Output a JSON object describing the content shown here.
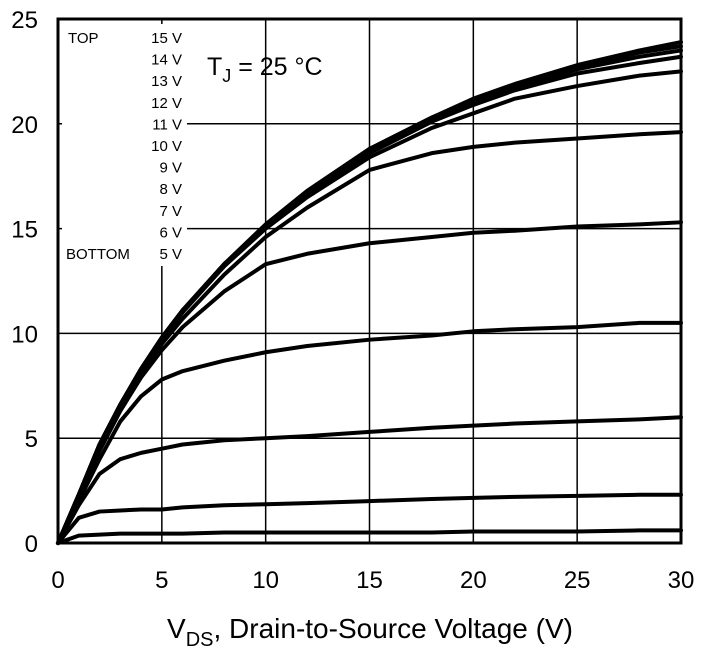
{
  "chart_data": {
    "type": "line",
    "annotation": {
      "main": "T",
      "sub": "J",
      "rest": " = 25 °C"
    },
    "x_label": {
      "main": "V",
      "sub": "DS",
      "rest": ", Drain-to-Source Voltage (V)"
    },
    "legend_top": "TOP",
    "legend_bottom": "BOTTOM",
    "x": [
      0,
      1,
      2,
      3,
      4,
      5,
      6,
      8,
      10,
      12,
      15,
      18,
      20,
      22,
      25,
      28,
      30
    ],
    "series": [
      {
        "name": "15 V",
        "color": "#000000",
        "values": [
          0,
          2.3,
          4.7,
          6.6,
          8.3,
          9.8,
          11.1,
          13.3,
          15.2,
          16.8,
          18.8,
          20.3,
          21.2,
          21.9,
          22.8,
          23.5,
          23.9
        ]
      },
      {
        "name": "14 V",
        "color": "#000000",
        "values": [
          0,
          2.3,
          4.7,
          6.6,
          8.3,
          9.8,
          11.1,
          13.3,
          15.2,
          16.8,
          18.8,
          20.3,
          21.1,
          21.8,
          22.7,
          23.4,
          23.7
        ]
      },
      {
        "name": "13 V",
        "color": "#000000",
        "values": [
          0,
          2.3,
          4.7,
          6.6,
          8.3,
          9.8,
          11.1,
          13.3,
          15.1,
          16.7,
          18.7,
          20.2,
          21,
          21.7,
          22.6,
          23.2,
          23.5
        ]
      },
      {
        "name": "12 V",
        "color": "#000000",
        "values": [
          0,
          2.3,
          4.7,
          6.6,
          8.3,
          9.8,
          11.1,
          13.2,
          15.1,
          16.6,
          18.6,
          20.1,
          20.9,
          21.6,
          22.4,
          22.9,
          23.2
        ]
      },
      {
        "name": "11 V",
        "color": "#000000",
        "values": [
          0,
          2.3,
          4.7,
          6.6,
          8.3,
          9.7,
          11,
          13.2,
          15,
          16.5,
          18.4,
          19.8,
          20.5,
          21.2,
          21.8,
          22.3,
          22.5
        ]
      },
      {
        "name": "10 V",
        "color": "#000000",
        "values": [
          0,
          2.3,
          4.6,
          6.5,
          8.1,
          9.5,
          10.7,
          12.8,
          14.6,
          16,
          17.8,
          18.6,
          18.9,
          19.1,
          19.3,
          19.5,
          19.6
        ]
      },
      {
        "name": "9 V",
        "color": "#000000",
        "values": [
          0,
          2.2,
          4.4,
          6.3,
          7.9,
          9.2,
          10.3,
          12,
          13.3,
          13.8,
          14.3,
          14.6,
          14.8,
          14.9,
          15.1,
          15.2,
          15.3
        ]
      },
      {
        "name": "8 V",
        "color": "#000000",
        "values": [
          0,
          2,
          4,
          5.8,
          7,
          7.8,
          8.2,
          8.7,
          9.1,
          9.4,
          9.7,
          9.9,
          10.1,
          10.2,
          10.3,
          10.5,
          10.5
        ]
      },
      {
        "name": "7 V",
        "color": "#000000",
        "values": [
          0,
          1.8,
          3.3,
          4,
          4.3,
          4.5,
          4.7,
          4.9,
          5,
          5.1,
          5.3,
          5.5,
          5.6,
          5.7,
          5.8,
          5.9,
          6
        ]
      },
      {
        "name": "6 V",
        "color": "#000000",
        "values": [
          0,
          1.2,
          1.5,
          1.55,
          1.6,
          1.6,
          1.7,
          1.8,
          1.85,
          1.9,
          2,
          2.1,
          2.15,
          2.2,
          2.25,
          2.3,
          2.3
        ]
      },
      {
        "name": "5 V",
        "color": "#000000",
        "values": [
          0,
          0.35,
          0.4,
          0.45,
          0.45,
          0.45,
          0.45,
          0.5,
          0.5,
          0.5,
          0.5,
          0.5,
          0.55,
          0.55,
          0.55,
          0.6,
          0.6
        ]
      }
    ],
    "xlim": [
      0,
      30
    ],
    "xticks": [
      0,
      5,
      10,
      15,
      20,
      25,
      30
    ],
    "ylim": [
      0,
      25
    ],
    "yticks": [
      0,
      5,
      10,
      15,
      20,
      25
    ],
    "grid": true
  }
}
